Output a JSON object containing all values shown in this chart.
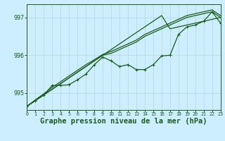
{
  "background_color": "#cceeff",
  "grid_color": "#aaddcc",
  "line_color": "#1a5c1a",
  "marker_color": "#1a5c1a",
  "title": "Graphe pression niveau de la mer (hPa)",
  "title_fontsize": 7.5,
  "ylabel_values": [
    995,
    996,
    997
  ],
  "xlim": [
    0,
    23
  ],
  "ylim": [
    994.55,
    997.35
  ],
  "x_ticks": [
    0,
    1,
    2,
    3,
    4,
    5,
    6,
    7,
    8,
    9,
    10,
    11,
    12,
    13,
    14,
    15,
    16,
    17,
    18,
    19,
    20,
    21,
    22,
    23
  ],
  "series_linear1": [
    994.65,
    994.8,
    994.95,
    995.1,
    995.25,
    995.4,
    995.55,
    995.7,
    995.85,
    996.0,
    996.15,
    996.3,
    996.45,
    996.6,
    996.75,
    996.9,
    997.05,
    996.7,
    996.75,
    996.8,
    996.85,
    996.9,
    996.95,
    997.0
  ],
  "series_linear2": [
    994.65,
    994.8,
    994.95,
    995.1,
    995.25,
    995.4,
    995.55,
    995.7,
    995.85,
    996.0,
    996.05,
    996.15,
    996.25,
    996.35,
    996.5,
    996.6,
    996.7,
    996.8,
    996.9,
    997.0,
    997.05,
    997.1,
    997.15,
    997.0
  ],
  "series_linear3": [
    994.65,
    994.82,
    994.98,
    995.15,
    995.3,
    995.45,
    995.6,
    995.75,
    995.88,
    996.02,
    996.1,
    996.2,
    996.3,
    996.4,
    996.55,
    996.65,
    996.75,
    996.85,
    996.95,
    997.05,
    997.1,
    997.15,
    997.2,
    997.05
  ],
  "series_wiggly": [
    994.65,
    994.8,
    994.95,
    995.2,
    995.2,
    995.22,
    995.35,
    995.5,
    995.75,
    995.95,
    995.85,
    995.7,
    995.75,
    995.62,
    995.62,
    995.75,
    995.98,
    996.0,
    996.55,
    996.75,
    996.8,
    996.9,
    997.15,
    996.85
  ]
}
